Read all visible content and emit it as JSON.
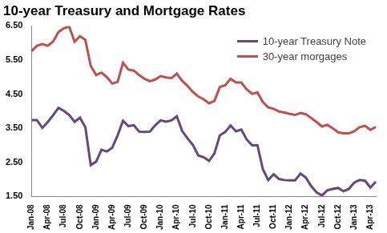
{
  "chart_data": {
    "type": "line",
    "title": "10-year Treasury and Mortgage Rates",
    "categories": [
      "Jan-08",
      null,
      null,
      "Apr-08",
      null,
      null,
      "Jul-08",
      null,
      null,
      "Oct-08",
      null,
      null,
      "Jan-09",
      null,
      null,
      "Apr-09",
      null,
      null,
      "Jul-09",
      null,
      null,
      "Oct-09",
      null,
      null,
      "Jan-10",
      null,
      null,
      "Apr-10",
      null,
      null,
      "Jul-10",
      null,
      null,
      "Oct-10",
      null,
      null,
      "Jan-11",
      null,
      null,
      "Apr-11",
      null,
      null,
      "Jul-11",
      null,
      null,
      "Oct-11",
      null,
      null,
      "Jan-12",
      null,
      null,
      "Apr-12",
      null,
      null,
      "Jul-12",
      null,
      null,
      "Oct-12",
      null,
      null,
      "Jan-13",
      null,
      null,
      "Apr-13",
      null
    ],
    "series": [
      {
        "name": "10-year Treasury Note",
        "color": "#604a7b",
        "values": [
          3.74,
          3.74,
          3.51,
          3.68,
          3.88,
          4.1,
          4.01,
          3.89,
          3.69,
          3.81,
          3.53,
          2.42,
          2.52,
          2.87,
          2.82,
          2.93,
          3.29,
          3.72,
          3.56,
          3.59,
          3.4,
          3.39,
          3.4,
          3.59,
          3.73,
          3.69,
          3.73,
          3.85,
          3.42,
          3.2,
          3.01,
          2.7,
          2.65,
          2.54,
          2.76,
          3.29,
          3.39,
          3.58,
          3.41,
          3.46,
          3.17,
          3.0,
          3.0,
          2.3,
          1.98,
          2.15,
          2.01,
          1.98,
          1.97,
          1.97,
          2.17,
          2.05,
          1.8,
          1.62,
          1.53,
          1.68,
          1.72,
          1.75,
          1.65,
          1.72,
          1.91,
          1.98,
          1.96,
          1.76,
          1.93
        ]
      },
      {
        "name": "30-year morgages",
        "color": "#c0504d",
        "values": [
          5.76,
          5.92,
          5.97,
          5.92,
          6.04,
          6.32,
          6.43,
          6.48,
          6.04,
          6.2,
          6.09,
          5.33,
          5.06,
          5.13,
          5.0,
          4.81,
          4.86,
          5.42,
          5.22,
          5.19,
          5.06,
          4.95,
          4.88,
          4.93,
          5.03,
          4.99,
          4.97,
          5.1,
          4.89,
          4.74,
          4.56,
          4.43,
          4.35,
          4.23,
          4.3,
          4.71,
          4.76,
          4.95,
          4.84,
          4.84,
          4.64,
          4.51,
          4.55,
          4.27,
          4.11,
          4.07,
          3.99,
          3.96,
          3.92,
          3.89,
          3.95,
          3.91,
          3.8,
          3.68,
          3.55,
          3.6,
          3.5,
          3.38,
          3.35,
          3.35,
          3.41,
          3.53,
          3.57,
          3.45,
          3.54
        ]
      }
    ],
    "ylim": [
      1.5,
      6.5
    ],
    "yticks": [
      {
        "value": 1.5,
        "label": "1.50"
      },
      {
        "value": 2.5,
        "label": "2.50"
      },
      {
        "value": 3.5,
        "label": "3.50"
      },
      {
        "value": 4.5,
        "label": "4.50"
      },
      {
        "value": 5.5,
        "label": "5.50"
      },
      {
        "value": 6.5,
        "label": "6.50"
      }
    ],
    "grid": false,
    "legend": "top-right"
  }
}
